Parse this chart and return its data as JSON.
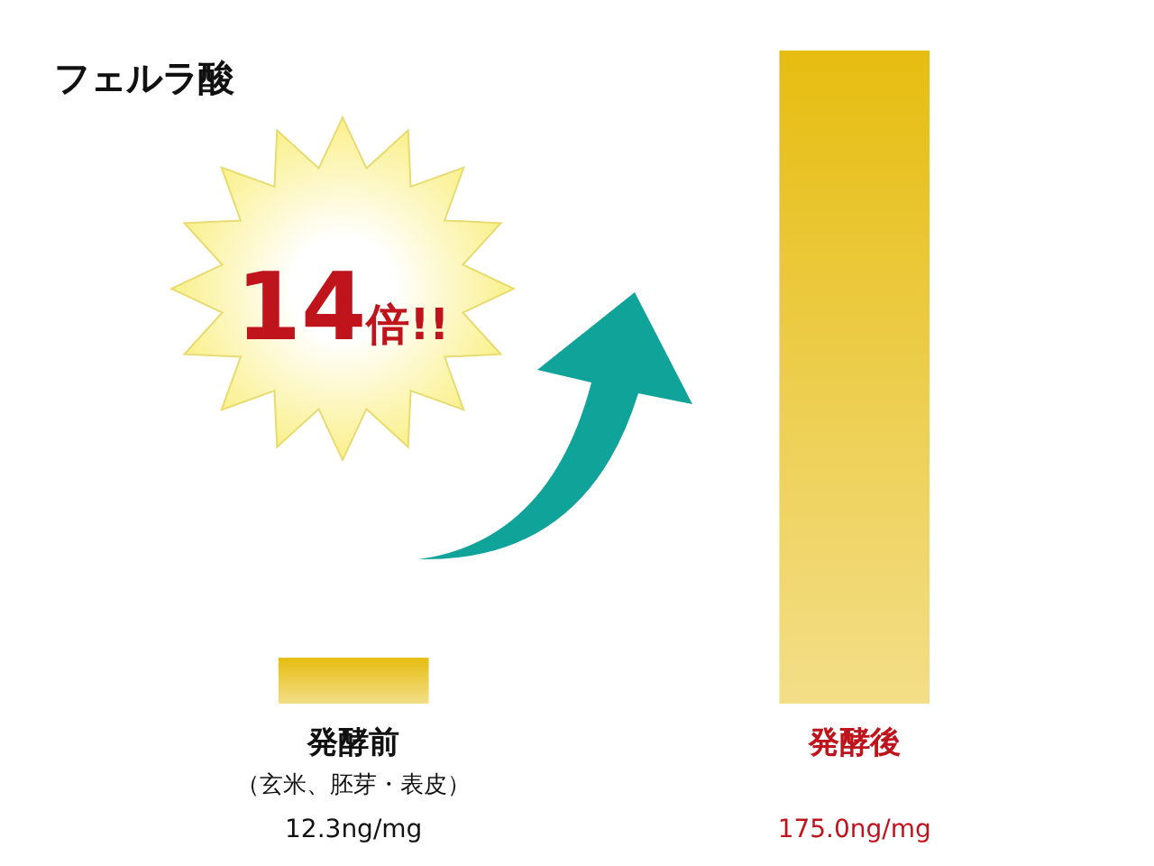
{
  "chart_data": {
    "type": "bar",
    "title": "フェルラ酸",
    "categories": [
      "発酵前（玄米、胚芽・表皮）",
      "発酵後"
    ],
    "values": [
      12.3,
      175.0
    ],
    "value_labels": [
      "12.3ng/mg",
      "175.0ng/mg"
    ],
    "colors": [
      "#e6bd10",
      "#e6bd10"
    ],
    "annotations": [
      "14倍!!"
    ]
  }
}
